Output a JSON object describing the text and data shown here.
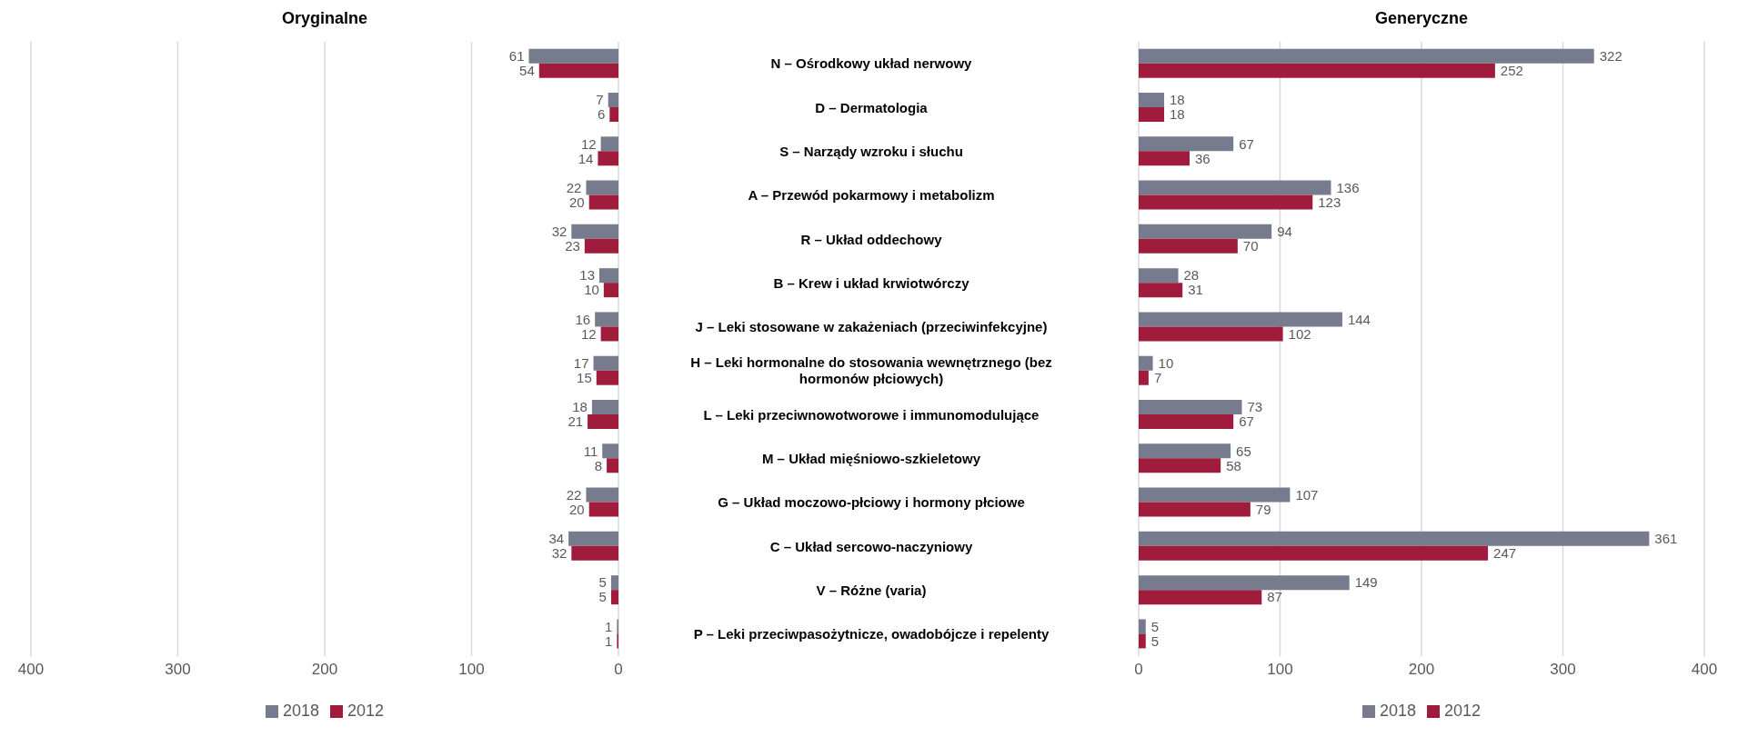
{
  "chart_data": [
    {
      "type": "bar",
      "title": "Oryginalne",
      "orientation": "horizontal",
      "categories": [
        null,
        null,
        null,
        null,
        null,
        null,
        null,
        null,
        null,
        null,
        null,
        null,
        null,
        null
      ],
      "series": [
        {
          "name": "2018",
          "color": "#767b8d",
          "values": [
            61,
            7,
            12,
            22,
            32,
            13,
            16,
            17,
            18,
            11,
            22,
            34,
            5,
            1
          ]
        },
        {
          "name": "2012",
          "color": "#a01c3c",
          "values": [
            54,
            6,
            14,
            20,
            23,
            10,
            12,
            15,
            21,
            8,
            20,
            32,
            5,
            1
          ]
        }
      ],
      "xlim": [
        400,
        0
      ],
      "xticks": [
        0,
        100,
        200,
        300,
        400
      ],
      "grid": "x",
      "legend": "bottom",
      "data_labels": true
    },
    {
      "type": "bar",
      "title": "Generyczne",
      "orientation": "horizontal",
      "categories": [
        "N – Ośrodkowy układ nerwowy",
        "D – Dermatologia",
        "S – Narządy wzroku i słuchu",
        "A – Przewód pokarmowy i metabolizm",
        "R – Układ oddechowy",
        "B – Krew i układ krwiotwórczy",
        "J – Leki stosowane w zakażeniach (przeciwinfekcyjne)",
        "H – Leki hormonalne do stosowania wewnętrznego (bez hormonów płciowych)",
        "L – Leki przeciwnowotworowe i immunomodulujące",
        "M – Układ mięśniowo-szkieletowy",
        "G – Układ moczowo-płciowy i hormony płciowe",
        "C – Układ sercowo-naczyniowy",
        "V – Różne (varia)",
        "P – Leki przeciwpasożytnicze, owadobójcze i repelenty"
      ],
      "series": [
        {
          "name": "2018",
          "color": "#767b8d",
          "values": [
            322,
            18,
            67,
            136,
            94,
            28,
            144,
            10,
            73,
            65,
            107,
            361,
            149,
            5
          ]
        },
        {
          "name": "2012",
          "color": "#a01c3c",
          "values": [
            252,
            18,
            36,
            123,
            70,
            31,
            102,
            7,
            67,
            58,
            79,
            247,
            87,
            5
          ]
        }
      ],
      "xlim": [
        0,
        400
      ],
      "xticks": [
        0,
        100,
        200,
        300,
        400
      ],
      "grid": "x",
      "legend": "bottom",
      "data_labels": true
    }
  ]
}
